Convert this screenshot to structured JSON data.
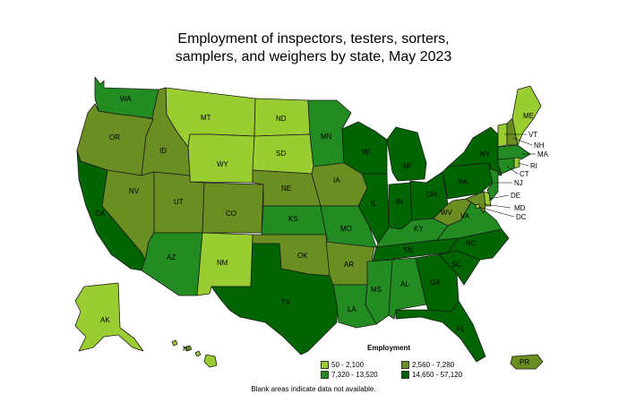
{
  "title_line1": "Employment of inspectors, testers, sorters,",
  "title_line2": "samplers, and weighers by state, May 2023",
  "legend": {
    "title": "Employment",
    "ranges": [
      {
        "label": "50 - 2,100",
        "color": "#9acd32"
      },
      {
        "label": "2,560 - 7,280",
        "color": "#6b8e23"
      },
      {
        "label": "7,320 - 13,520",
        "color": "#228b22"
      },
      {
        "label": "14,650 - 57,120",
        "color": "#006400"
      }
    ]
  },
  "note": "Blank areas indicate data not available.",
  "states": [
    {
      "abbr": "WA",
      "class": 2
    },
    {
      "abbr": "OR",
      "class": 1
    },
    {
      "abbr": "CA",
      "class": 3
    },
    {
      "abbr": "ID",
      "class": 1
    },
    {
      "abbr": "NV",
      "class": 1
    },
    {
      "abbr": "MT",
      "class": 0
    },
    {
      "abbr": "WY",
      "class": 0
    },
    {
      "abbr": "UT",
      "class": 1
    },
    {
      "abbr": "AZ",
      "class": 2
    },
    {
      "abbr": "CO",
      "class": 1
    },
    {
      "abbr": "NM",
      "class": 0
    },
    {
      "abbr": "ND",
      "class": 0
    },
    {
      "abbr": "SD",
      "class": 0
    },
    {
      "abbr": "NE",
      "class": 1
    },
    {
      "abbr": "KS",
      "class": 2
    },
    {
      "abbr": "OK",
      "class": 1
    },
    {
      "abbr": "TX",
      "class": 3
    },
    {
      "abbr": "MN",
      "class": 2
    },
    {
      "abbr": "IA",
      "class": 1
    },
    {
      "abbr": "MO",
      "class": 2
    },
    {
      "abbr": "AR",
      "class": 1
    },
    {
      "abbr": "LA",
      "class": 2
    },
    {
      "abbr": "WI",
      "class": 3
    },
    {
      "abbr": "IL",
      "class": 3
    },
    {
      "abbr": "MI",
      "class": 3
    },
    {
      "abbr": "IN",
      "class": 3
    },
    {
      "abbr": "OH",
      "class": 3
    },
    {
      "abbr": "KY",
      "class": 2
    },
    {
      "abbr": "TN",
      "class": 3
    },
    {
      "abbr": "MS",
      "class": 2
    },
    {
      "abbr": "AL",
      "class": 2
    },
    {
      "abbr": "GA",
      "class": 3
    },
    {
      "abbr": "FL",
      "class": 3
    },
    {
      "abbr": "SC",
      "class": 3
    },
    {
      "abbr": "NC",
      "class": 3
    },
    {
      "abbr": "VA",
      "class": 2
    },
    {
      "abbr": "WV",
      "class": 1
    },
    {
      "abbr": "PA",
      "class": 3
    },
    {
      "abbr": "NY",
      "class": 3
    },
    {
      "abbr": "VT",
      "class": 0
    },
    {
      "abbr": "NH",
      "class": 1
    },
    {
      "abbr": "ME",
      "class": 0
    },
    {
      "abbr": "MA",
      "class": 2
    },
    {
      "abbr": "RI",
      "class": 0
    },
    {
      "abbr": "CT",
      "class": 2
    },
    {
      "abbr": "NJ",
      "class": 2
    },
    {
      "abbr": "DE",
      "class": 0
    },
    {
      "abbr": "MD",
      "class": 1
    },
    {
      "abbr": "DC",
      "class": 0
    },
    {
      "abbr": "AK",
      "class": 0
    },
    {
      "abbr": "HI",
      "class": 0
    },
    {
      "abbr": "PR",
      "class": 1
    }
  ]
}
